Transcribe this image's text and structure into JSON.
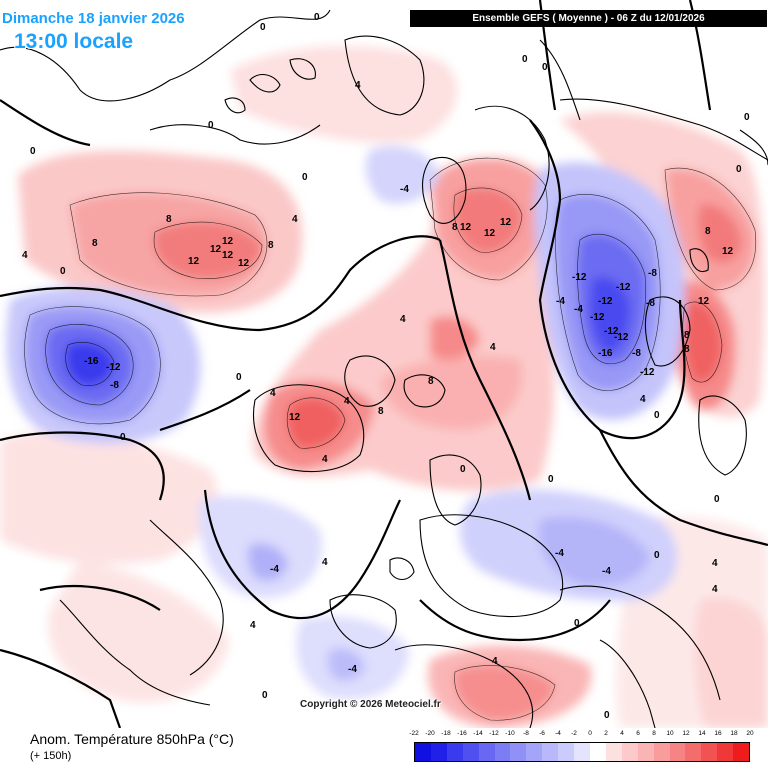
{
  "header": {
    "date": "Dimanche 18 janvier 2026",
    "time": "13:00 locale",
    "run": "Ensemble GEFS  ( Moyenne )  -  06 Z du 12/01/2026"
  },
  "footer": {
    "parameter": "Anom. Température 850hPa (°C)",
    "lead_time": "(+ 150h)",
    "copyright": "Copyright © 2026 Meteociel.fr"
  },
  "legend": {
    "ticks": [
      "-22",
      "-20",
      "-18",
      "-16",
      "-14",
      "-12",
      "-10",
      "-8",
      "-6",
      "-4",
      "-2",
      "0",
      "2",
      "4",
      "6",
      "8",
      "10",
      "12",
      "14",
      "16",
      "18",
      "20"
    ],
    "colors": [
      "#1010e0",
      "#2020e8",
      "#3a3aee",
      "#5050f0",
      "#6868f2",
      "#7c7cf4",
      "#9090f6",
      "#a4a4f8",
      "#b8b8fa",
      "#ccccfc",
      "#e4e4fe",
      "#ffffff",
      "#fde0e0",
      "#fccaca",
      "#fab4b4",
      "#f89c9c",
      "#f68484",
      "#f46c6c",
      "#f25252",
      "#f03838",
      "#ee1c1c"
    ]
  },
  "contour_labels": {
    "pos": [
      "4",
      "8",
      "8",
      "12",
      "12",
      "12",
      "12",
      "12",
      "8",
      "8",
      "12",
      "12",
      "8",
      "8",
      "12",
      "12",
      "12",
      "8",
      "8",
      "12",
      "8",
      "4",
      "4",
      "4",
      "4",
      "4",
      "4",
      "4",
      "4",
      "4",
      "4",
      "4",
      "4",
      "4"
    ],
    "neg": [
      "-16",
      "-12",
      "-8",
      "-8",
      "-12",
      "-12",
      "-12",
      "-12",
      "-12",
      "-12",
      "-16",
      "-12",
      "-8",
      "-8",
      "-4",
      "-4",
      "-4",
      "-4",
      "-4",
      "-4",
      "-4"
    ],
    "zero": [
      "0",
      "0",
      "0",
      "0",
      "0",
      "0",
      "0",
      "0",
      "0",
      "0",
      "0",
      "0",
      "0",
      "0",
      "0",
      "0",
      "0",
      "0",
      "0",
      "0"
    ]
  },
  "colors": {
    "title_blue": "#19a3ff",
    "banner_bg": "#000000",
    "banner_text": "#ffffff"
  }
}
